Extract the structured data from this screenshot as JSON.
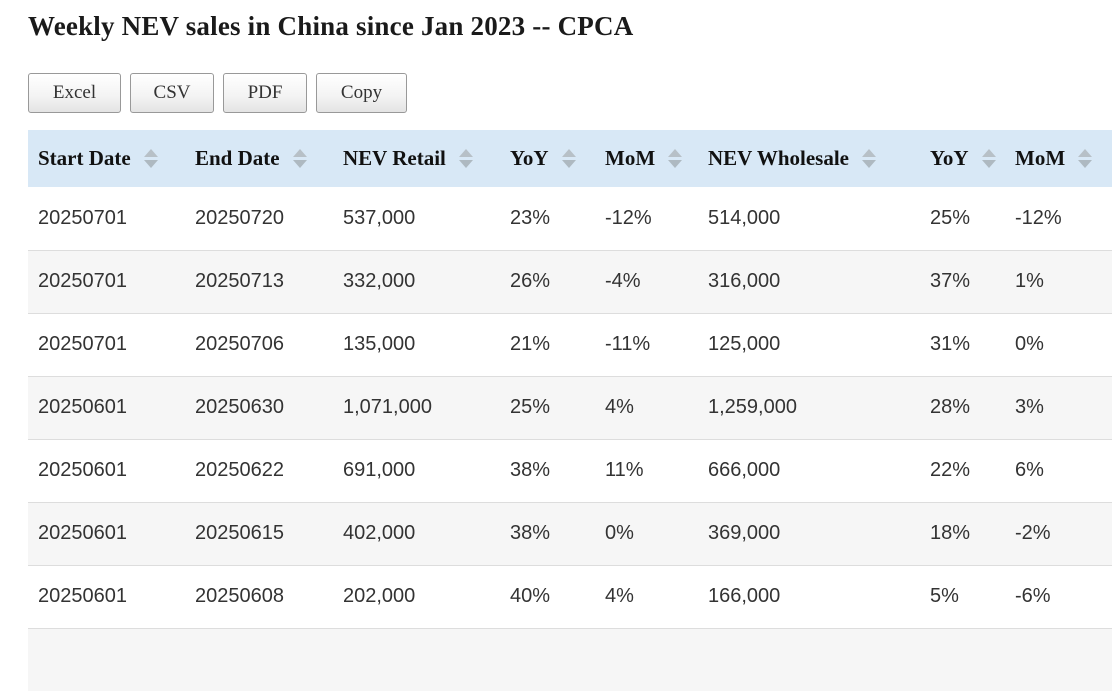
{
  "page": {
    "title": "Weekly NEV sales in China since Jan 2023 -- CPCA"
  },
  "toolbar": {
    "buttons": [
      {
        "label": "Excel"
      },
      {
        "label": "CSV"
      },
      {
        "label": "PDF"
      },
      {
        "label": "Copy"
      }
    ]
  },
  "table": {
    "columns": [
      {
        "label": "Start Date"
      },
      {
        "label": "End Date"
      },
      {
        "label": "NEV Retail"
      },
      {
        "label": "YoY"
      },
      {
        "label": "MoM"
      },
      {
        "label": "NEV Wholesale"
      },
      {
        "label": "YoY"
      },
      {
        "label": "MoM"
      }
    ],
    "rows": [
      [
        "20250701",
        "20250720",
        "537,000",
        "23%",
        "-12%",
        "514,000",
        "25%",
        "-12%"
      ],
      [
        "20250701",
        "20250713",
        "332,000",
        "26%",
        "-4%",
        "316,000",
        "37%",
        "1%"
      ],
      [
        "20250701",
        "20250706",
        "135,000",
        "21%",
        "-11%",
        "125,000",
        "31%",
        "0%"
      ],
      [
        "20250601",
        "20250630",
        "1,071,000",
        "25%",
        "4%",
        "1,259,000",
        "28%",
        "3%"
      ],
      [
        "20250601",
        "20250622",
        "691,000",
        "38%",
        "11%",
        "666,000",
        "22%",
        "6%"
      ],
      [
        "20250601",
        "20250615",
        "402,000",
        "38%",
        "0%",
        "369,000",
        "18%",
        "-2%"
      ],
      [
        "20250601",
        "20250608",
        "202,000",
        "40%",
        "4%",
        "166,000",
        "5%",
        "-6%"
      ]
    ],
    "partial_row_visible": true
  },
  "icons": {
    "sort": "sort-arrows-icon"
  },
  "colors": {
    "header_bg": "#d8e8f6",
    "stripe_bg": "#f6f6f6",
    "row_border": "#dddddd",
    "sort_arrow": "#b3bdc4",
    "button_border": "#999999",
    "body_text": "#333333",
    "title_text": "#1a1a1a"
  }
}
